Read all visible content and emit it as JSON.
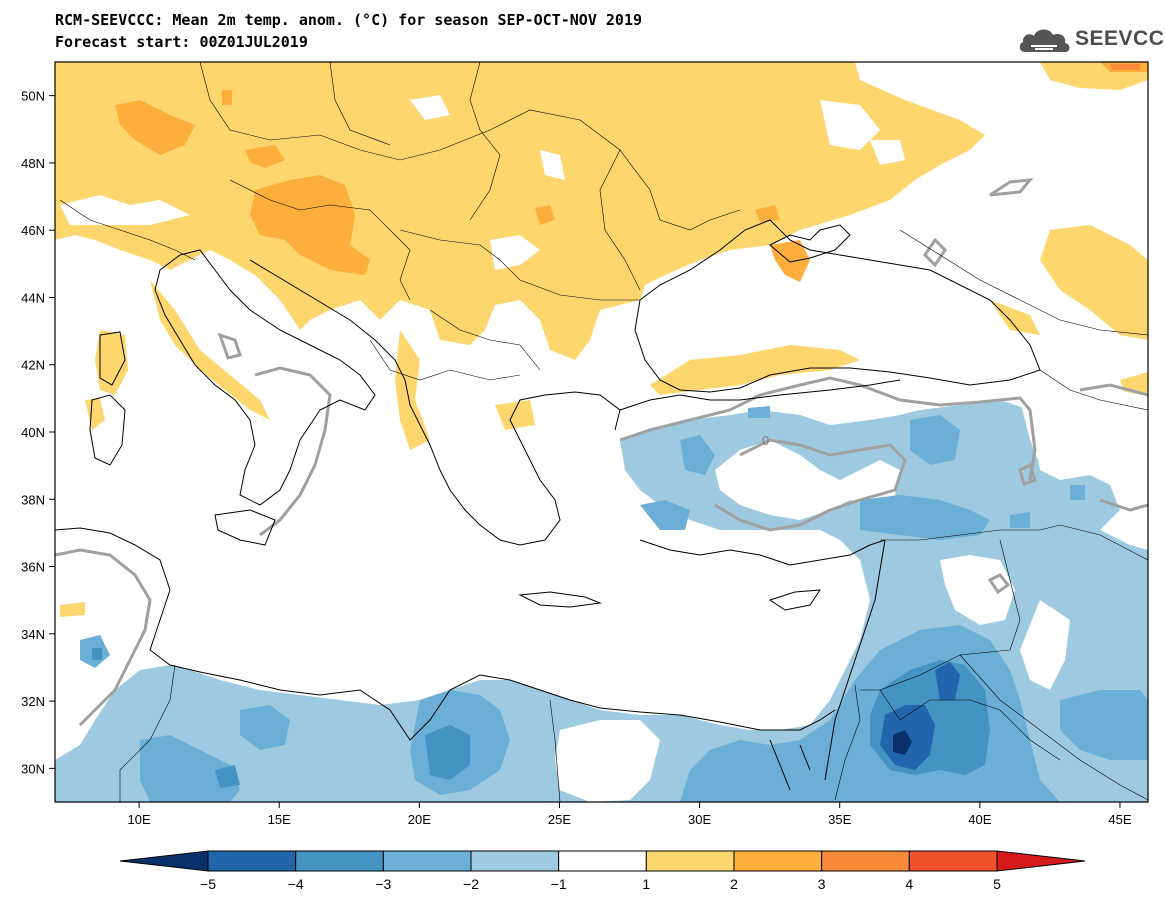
{
  "header": {
    "title_line1": "RCM-SEEVCCC: Mean 2m temp. anom. (°C) for season SEP-OCT-NOV 2019",
    "title_line2": "Forecast start: 00Z01JUL2019",
    "logo_text": "SEEVCCC"
  },
  "map": {
    "lon_range": [
      7,
      46
    ],
    "lat_range": [
      29,
      51
    ],
    "lon_ticks": [
      "10E",
      "15E",
      "20E",
      "25E",
      "30E",
      "35E",
      "40E",
      "45E"
    ],
    "lat_ticks": [
      "50N",
      "48N",
      "46N",
      "44N",
      "42N",
      "40N",
      "38N",
      "36N",
      "34N",
      "32N",
      "30N"
    ],
    "contour_label": "0"
  },
  "colorbar": {
    "labels": [
      "−5",
      "−4",
      "−3",
      "−2",
      "−1",
      "1",
      "2",
      "3",
      "4",
      "5"
    ],
    "colors": [
      "#08306b",
      "#2166ac",
      "#4393c3",
      "#6baed6",
      "#9ecae1",
      "#ffffff",
      "#fdd66e",
      "#fdae3c",
      "#f98a3a",
      "#f0502a",
      "#d7191c"
    ]
  }
}
